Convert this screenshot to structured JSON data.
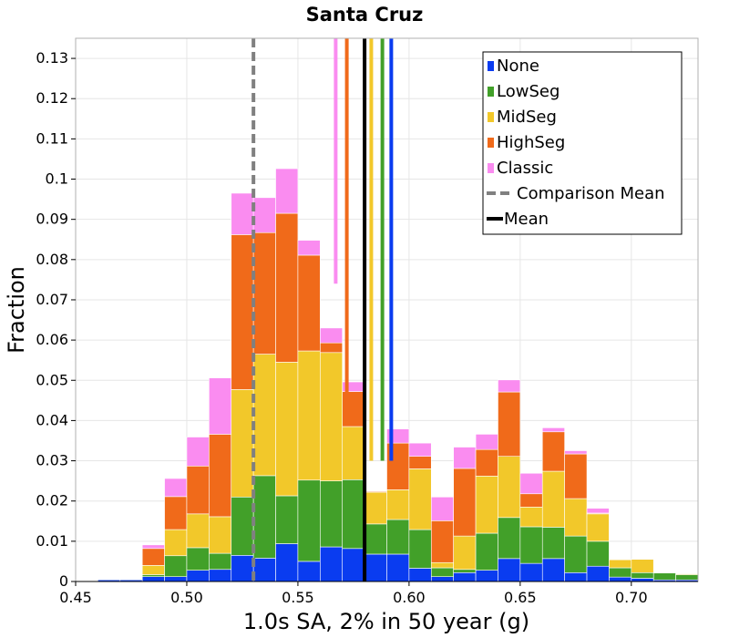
{
  "chart_data": {
    "type": "bar",
    "stacked": true,
    "title": "Santa Cruz",
    "xlabel": "1.0s SA, 2% in 50 year (g)",
    "ylabel": "Fraction",
    "xlim": [
      0.45,
      0.73
    ],
    "ylim": [
      0,
      0.135
    ],
    "bin_width": 0.01,
    "x_ticks": [
      0.45,
      0.5,
      0.55,
      0.6,
      0.65,
      0.7
    ],
    "x_tick_labels": [
      "0.45",
      "0.50",
      "0.55",
      "0.60",
      "0.65",
      "0.70"
    ],
    "y_ticks": [
      0,
      0.01,
      0.02,
      0.03,
      0.04,
      0.05,
      0.06,
      0.07,
      0.08,
      0.09,
      0.1,
      0.11,
      0.12,
      0.13
    ],
    "y_tick_labels": [
      "0",
      "0.01",
      "0.02",
      "0.03",
      "0.04",
      "0.05",
      "0.06",
      "0.07",
      "0.08",
      "0.09",
      "0.1",
      "0.11",
      "0.12",
      "0.13"
    ],
    "grid": true,
    "legend_position": "top-right",
    "bin_starts": [
      0.46,
      0.47,
      0.48,
      0.49,
      0.5,
      0.51,
      0.52,
      0.53,
      0.54,
      0.55,
      0.56,
      0.57,
      0.58,
      0.59,
      0.6,
      0.61,
      0.62,
      0.63,
      0.64,
      0.65,
      0.66,
      0.67,
      0.68,
      0.69,
      0.7,
      0.71,
      0.72
    ],
    "series": [
      {
        "name": "None",
        "color": "#0a3cf0",
        "values": [
          0.0004,
          0.0004,
          0.0012,
          0.0012,
          0.0028,
          0.003,
          0.0065,
          0.0058,
          0.0094,
          0.005,
          0.0086,
          0.0082,
          0.0068,
          0.0068,
          0.0033,
          0.0012,
          0.0022,
          0.0028,
          0.0057,
          0.0045,
          0.0057,
          0.0022,
          0.0038,
          0.0011,
          0.0008,
          0.0004,
          0.0004
        ]
      },
      {
        "name": "LowSeg",
        "color": "#42a029",
        "values": [
          0,
          0,
          0.0005,
          0.0052,
          0.0056,
          0.004,
          0.0145,
          0.0205,
          0.0119,
          0.0202,
          0.0164,
          0.0171,
          0.0075,
          0.0086,
          0.0096,
          0.0022,
          0.0008,
          0.0092,
          0.0102,
          0.0091,
          0.0078,
          0.0091,
          0.0062,
          0.0023,
          0.0014,
          0.0017,
          0.0013
        ]
      },
      {
        "name": "MidSeg",
        "color": "#f2c82a",
        "values": [
          0,
          0,
          0.0023,
          0.0065,
          0.0084,
          0.0091,
          0.0267,
          0.0302,
          0.0332,
          0.0321,
          0.0319,
          0.0132,
          0.0079,
          0.0074,
          0.0151,
          0.0013,
          0.0083,
          0.0142,
          0.0152,
          0.0049,
          0.0139,
          0.0093,
          0.0068,
          0.002,
          0.0033,
          0,
          0.0002
        ]
      },
      {
        "name": "HighSeg",
        "color": "#f06a1a",
        "values": [
          0,
          0,
          0.0042,
          0.0082,
          0.0119,
          0.0205,
          0.0385,
          0.0302,
          0.037,
          0.0238,
          0.0024,
          0.0087,
          0.0002,
          0.0116,
          0.0031,
          0.0104,
          0.0168,
          0.0066,
          0.016,
          0.0033,
          0.0098,
          0.0111,
          0.0002,
          0,
          0,
          0,
          0
        ]
      },
      {
        "name": "Classic",
        "color": "#fa8cf0",
        "values": [
          0,
          0,
          0.0009,
          0.0045,
          0.0072,
          0.014,
          0.0103,
          0.0087,
          0.0111,
          0.0037,
          0.0037,
          0.0024,
          0,
          0.0035,
          0.0033,
          0.0059,
          0.0053,
          0.0038,
          0.003,
          0.0051,
          0.001,
          0.0008,
          0.0012,
          0,
          0,
          0,
          0
        ]
      }
    ],
    "mean_lines": [
      {
        "name": "None",
        "x": 0.592,
        "color": "#0a3cf0",
        "ymin": 0.03,
        "ymax": 0.135
      },
      {
        "name": "LowSeg",
        "x": 0.588,
        "color": "#42a029",
        "ymin": 0.03,
        "ymax": 0.135
      },
      {
        "name": "MidSeg",
        "x": 0.583,
        "color": "#f2c82a",
        "ymin": 0.03,
        "ymax": 0.135
      },
      {
        "name": "HighSeg",
        "x": 0.572,
        "color": "#f06a1a",
        "ymin": 0.047,
        "ymax": 0.135
      },
      {
        "name": "Classic",
        "x": 0.567,
        "color": "#fa8cf0",
        "ymin": 0.074,
        "ymax": 0.135
      },
      {
        "name": "Mean",
        "x": 0.58,
        "color": "#000000",
        "ymin": 0,
        "ymax": 0.135
      }
    ],
    "comparison_mean": {
      "name": "Comparison Mean",
      "x": 0.53,
      "color": "#808080"
    },
    "legend": [
      {
        "label": "None",
        "color": "#0a3cf0",
        "style": "box"
      },
      {
        "label": "LowSeg",
        "color": "#42a029",
        "style": "box"
      },
      {
        "label": "MidSeg",
        "color": "#f2c82a",
        "style": "box"
      },
      {
        "label": "HighSeg",
        "color": "#f06a1a",
        "style": "box"
      },
      {
        "label": "Classic",
        "color": "#fa8cf0",
        "style": "box"
      },
      {
        "label": "Comparison Mean",
        "color": "#808080",
        "style": "dashed"
      },
      {
        "label": "Mean",
        "color": "#000000",
        "style": "solid"
      }
    ]
  }
}
